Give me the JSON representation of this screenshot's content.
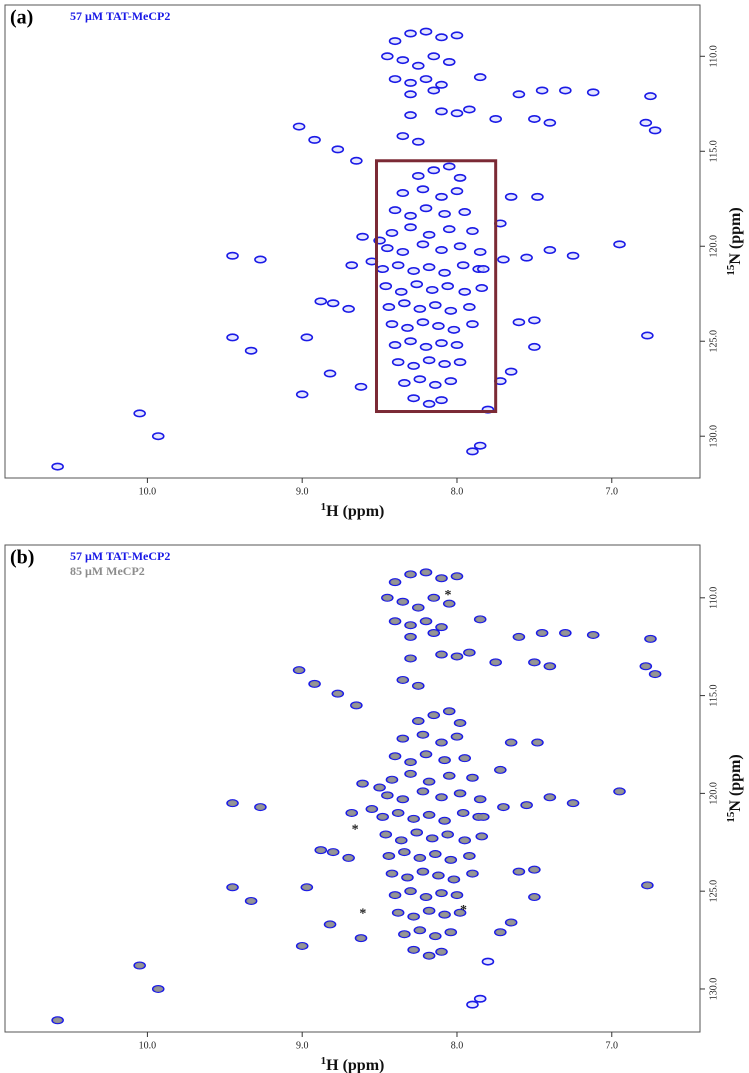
{
  "chart_data": [
    {
      "type": "scatter",
      "panel_label": "(a)",
      "xlabel": {
        "sup": "1",
        "text": "H (ppm)"
      },
      "ylabel": {
        "sup": "15",
        "text": "N (ppm)"
      },
      "xlim": [
        10.92,
        6.43
      ],
      "ylim": [
        107.3,
        132.2
      ],
      "xticks": [
        {
          "value": 10,
          "label": "10.0"
        },
        {
          "value": 9,
          "label": "9.0"
        },
        {
          "value": 8,
          "label": "8.0"
        },
        {
          "value": 7,
          "label": "7.0"
        }
      ],
      "yticks": [
        {
          "value": 110,
          "label": "110.0"
        },
        {
          "value": 115,
          "label": "115.0"
        },
        {
          "value": 120,
          "label": "120.0"
        },
        {
          "value": 125,
          "label": "125.0"
        },
        {
          "value": 130,
          "label": "130.0"
        }
      ],
      "box": {
        "x": [
          8.52,
          7.75
        ],
        "y": [
          115.5,
          128.7
        ],
        "color": "#7b2a35"
      },
      "series": [
        {
          "name": "57 μM TAT-MeCP2",
          "color": "#1a1ae6",
          "x": [
            8.4,
            8.3,
            8.2,
            8.1,
            8.0,
            8.45,
            8.35,
            8.25,
            8.15,
            8.05,
            8.4,
            8.3,
            8.2,
            8.1,
            8.3,
            8.15,
            8.25,
            8.15,
            8.05,
            7.98,
            8.35,
            8.22,
            8.1,
            8.0,
            8.4,
            8.3,
            8.2,
            8.08,
            7.95,
            8.42,
            8.3,
            8.18,
            8.05,
            7.9,
            8.45,
            8.35,
            8.22,
            8.1,
            7.98,
            7.85,
            8.48,
            8.38,
            8.28,
            8.18,
            8.08,
            7.96,
            7.86,
            8.46,
            8.36,
            8.26,
            8.16,
            8.06,
            7.95,
            7.84,
            8.44,
            8.34,
            8.24,
            8.14,
            8.04,
            7.92,
            8.42,
            8.32,
            8.22,
            8.12,
            8.02,
            7.9,
            8.4,
            8.3,
            8.2,
            8.1,
            8.0,
            8.38,
            8.28,
            8.18,
            8.08,
            7.98,
            8.34,
            8.24,
            8.14,
            8.04,
            8.28,
            8.18,
            8.1,
            10.58,
            9.93,
            10.05,
            9.45,
            9.27,
            9.45,
            9.33,
            9.02,
            8.92,
            8.77,
            8.65,
            8.88,
            8.8,
            8.7,
            8.97,
            8.82,
            8.62,
            9.0,
            8.68,
            8.55,
            8.61,
            8.5,
            7.4,
            7.55,
            7.25,
            6.95,
            7.5,
            7.6,
            6.77,
            7.5,
            7.7,
            7.83,
            7.65,
            7.72,
            7.48,
            7.6,
            7.45,
            7.3,
            7.12,
            7.5,
            7.4,
            6.75,
            6.78,
            6.72,
            7.75,
            7.85,
            8.3,
            8.1,
            8.0,
            7.92,
            8.35,
            8.25,
            7.65,
            7.72,
            7.8,
            7.85,
            7.9
          ],
          "y": [
            109.2,
            108.8,
            108.7,
            109.0,
            108.9,
            110.0,
            110.2,
            110.5,
            110.0,
            110.3,
            111.2,
            111.4,
            111.2,
            111.5,
            112.0,
            111.8,
            116.3,
            116.0,
            115.8,
            116.4,
            117.2,
            117.0,
            117.4,
            117.1,
            118.1,
            118.4,
            118.0,
            118.3,
            118.2,
            119.3,
            119.0,
            119.4,
            119.1,
            119.2,
            120.1,
            120.3,
            119.9,
            120.2,
            120.0,
            120.3,
            121.2,
            121.0,
            121.3,
            121.1,
            121.4,
            121.0,
            121.2,
            122.1,
            122.4,
            122.0,
            122.3,
            122.1,
            122.4,
            122.2,
            123.2,
            123.0,
            123.3,
            123.1,
            123.4,
            123.2,
            124.1,
            124.3,
            124.0,
            124.2,
            124.4,
            124.1,
            125.2,
            125.0,
            125.3,
            125.1,
            125.2,
            126.1,
            126.3,
            126.0,
            126.2,
            126.1,
            127.2,
            127.0,
            127.3,
            127.1,
            128.0,
            128.3,
            128.1,
            131.6,
            130.0,
            128.8,
            120.5,
            120.7,
            124.8,
            125.5,
            113.7,
            114.4,
            114.9,
            115.5,
            122.9,
            123.0,
            123.3,
            124.8,
            126.7,
            127.4,
            127.8,
            121.0,
            120.8,
            119.5,
            119.7,
            120.2,
            120.6,
            120.5,
            119.9,
            123.9,
            124.0,
            124.7,
            125.3,
            120.7,
            121.2,
            117.4,
            118.8,
            117.4,
            112.0,
            111.8,
            111.8,
            111.9,
            113.3,
            113.5,
            112.1,
            113.5,
            113.9,
            113.3,
            111.1,
            113.1,
            112.9,
            113.0,
            112.8,
            114.2,
            114.5,
            126.6,
            127.1,
            128.6,
            130.5,
            130.8
          ]
        }
      ]
    },
    {
      "type": "scatter",
      "panel_label": "(b)",
      "xlabel": {
        "sup": "1",
        "text": "H (ppm)"
      },
      "ylabel": {
        "sup": "15",
        "text": "N (ppm)"
      },
      "xlim": [
        10.92,
        6.43
      ],
      "ylim": [
        107.3,
        132.2
      ],
      "xticks": [
        {
          "value": 10,
          "label": "10.0"
        },
        {
          "value": 9,
          "label": "9.0"
        },
        {
          "value": 8,
          "label": "8.0"
        },
        {
          "value": 7,
          "label": "7.0"
        }
      ],
      "yticks": [
        {
          "value": 110,
          "label": "110.0"
        },
        {
          "value": 115,
          "label": "115.0"
        },
        {
          "value": 120,
          "label": "120.0"
        },
        {
          "value": 125,
          "label": "125.0"
        },
        {
          "value": 130,
          "label": "130.0"
        }
      ],
      "annotations": [
        {
          "text": "*",
          "x": 8.0,
          "y": 110.2
        },
        {
          "text": "*",
          "x": 8.6,
          "y": 122.2
        },
        {
          "text": "*",
          "x": 8.55,
          "y": 126.5
        },
        {
          "text": "*",
          "x": 7.9,
          "y": 126.3
        }
      ],
      "series": [
        {
          "name": "57 μM TAT-MeCP2",
          "color": "#1a1ae6",
          "x": [
            8.4,
            8.3,
            8.2,
            8.1,
            8.0,
            8.45,
            8.35,
            8.25,
            8.15,
            8.05,
            8.4,
            8.3,
            8.2,
            8.1,
            8.3,
            8.15,
            8.25,
            8.15,
            8.05,
            7.98,
            8.35,
            8.22,
            8.1,
            8.0,
            8.4,
            8.3,
            8.2,
            8.08,
            7.95,
            8.42,
            8.3,
            8.18,
            8.05,
            7.9,
            8.45,
            8.35,
            8.22,
            8.1,
            7.98,
            7.85,
            8.48,
            8.38,
            8.28,
            8.18,
            8.08,
            7.96,
            7.86,
            8.46,
            8.36,
            8.26,
            8.16,
            8.06,
            7.95,
            7.84,
            8.44,
            8.34,
            8.24,
            8.14,
            8.04,
            7.92,
            8.42,
            8.32,
            8.22,
            8.12,
            8.02,
            7.9,
            8.4,
            8.3,
            8.2,
            8.1,
            8.0,
            8.38,
            8.28,
            8.18,
            8.08,
            7.98,
            8.34,
            8.24,
            8.14,
            8.04,
            8.28,
            8.18,
            8.1,
            10.58,
            9.93,
            10.05,
            9.45,
            9.27,
            9.45,
            9.33,
            9.02,
            8.92,
            8.77,
            8.65,
            8.88,
            8.8,
            8.7,
            8.97,
            8.82,
            8.62,
            9.0,
            8.68,
            8.55,
            8.61,
            8.5,
            7.4,
            7.55,
            7.25,
            6.95,
            7.5,
            7.6,
            6.77,
            7.5,
            7.7,
            7.83,
            7.65,
            7.72,
            7.48,
            7.6,
            7.45,
            7.3,
            7.12,
            7.5,
            7.4,
            6.75,
            6.78,
            6.72,
            7.75,
            7.85,
            8.3,
            8.1,
            8.0,
            7.92,
            8.35,
            8.25,
            7.65,
            7.72,
            7.8,
            7.85,
            7.9
          ],
          "y": [
            109.2,
            108.8,
            108.7,
            109.0,
            108.9,
            110.0,
            110.2,
            110.5,
            110.0,
            110.3,
            111.2,
            111.4,
            111.2,
            111.5,
            112.0,
            111.8,
            116.3,
            116.0,
            115.8,
            116.4,
            117.2,
            117.0,
            117.4,
            117.1,
            118.1,
            118.4,
            118.0,
            118.3,
            118.2,
            119.3,
            119.0,
            119.4,
            119.1,
            119.2,
            120.1,
            120.3,
            119.9,
            120.2,
            120.0,
            120.3,
            121.2,
            121.0,
            121.3,
            121.1,
            121.4,
            121.0,
            121.2,
            122.1,
            122.4,
            122.0,
            122.3,
            122.1,
            122.4,
            122.2,
            123.2,
            123.0,
            123.3,
            123.1,
            123.4,
            123.2,
            124.1,
            124.3,
            124.0,
            124.2,
            124.4,
            124.1,
            125.2,
            125.0,
            125.3,
            125.1,
            125.2,
            126.1,
            126.3,
            126.0,
            126.2,
            126.1,
            127.2,
            127.0,
            127.3,
            127.1,
            128.0,
            128.3,
            128.1,
            131.6,
            130.0,
            128.8,
            120.5,
            120.7,
            124.8,
            125.5,
            113.7,
            114.4,
            114.9,
            115.5,
            122.9,
            123.0,
            123.3,
            124.8,
            126.7,
            127.4,
            127.8,
            121.0,
            120.8,
            119.5,
            119.7,
            120.2,
            120.6,
            120.5,
            119.9,
            123.9,
            124.0,
            124.7,
            125.3,
            120.7,
            121.2,
            117.4,
            118.8,
            117.4,
            112.0,
            111.8,
            111.8,
            111.9,
            113.3,
            113.5,
            112.1,
            113.5,
            113.9,
            113.3,
            111.1,
            113.1,
            112.9,
            113.0,
            112.8,
            114.2,
            114.5,
            126.6,
            127.1,
            128.6,
            130.5,
            130.8
          ]
        },
        {
          "name": "85 μM MeCP2",
          "color": "#8c8c8c",
          "x": [
            8.4,
            8.3,
            8.2,
            8.1,
            8.0,
            8.45,
            8.35,
            8.25,
            8.15,
            8.05,
            8.4,
            8.3,
            8.2,
            8.1,
            8.3,
            8.15,
            8.25,
            8.15,
            8.05,
            7.98,
            8.35,
            8.22,
            8.1,
            8.0,
            8.4,
            8.3,
            8.2,
            8.08,
            7.95,
            8.42,
            8.3,
            8.18,
            8.05,
            7.9,
            8.45,
            8.35,
            8.22,
            8.1,
            7.98,
            7.85,
            8.48,
            8.38,
            8.28,
            8.18,
            8.08,
            7.96,
            7.86,
            8.46,
            8.36,
            8.26,
            8.16,
            8.06,
            7.95,
            7.84,
            8.44,
            8.34,
            8.24,
            8.14,
            8.04,
            7.92,
            8.42,
            8.32,
            8.22,
            8.12,
            8.02,
            7.9,
            8.4,
            8.3,
            8.2,
            8.1,
            8.0,
            8.38,
            8.28,
            8.18,
            8.08,
            7.98,
            8.34,
            8.24,
            8.14,
            8.04,
            8.28,
            8.18,
            8.1,
            10.58,
            9.93,
            10.05,
            9.45,
            9.27,
            9.45,
            9.33,
            9.02,
            8.92,
            8.77,
            8.65,
            8.88,
            8.8,
            8.7,
            8.97,
            8.82,
            8.62,
            9.0,
            8.68,
            8.55,
            8.61,
            8.5,
            7.4,
            7.55,
            7.25,
            6.95,
            7.5,
            7.6,
            6.77,
            7.5,
            7.7,
            7.83,
            7.65,
            7.72,
            7.48,
            7.6,
            7.45,
            7.3,
            7.12,
            7.5,
            7.4,
            6.75,
            6.78,
            6.72,
            7.75,
            7.85,
            8.3,
            8.1,
            8.0,
            7.92,
            8.35,
            8.25,
            7.65,
            7.72
          ],
          "y": [
            109.2,
            108.8,
            108.7,
            109.0,
            108.9,
            110.0,
            110.2,
            110.5,
            110.0,
            110.3,
            111.2,
            111.4,
            111.2,
            111.5,
            112.0,
            111.8,
            116.3,
            116.0,
            115.8,
            116.4,
            117.2,
            117.0,
            117.4,
            117.1,
            118.1,
            118.4,
            118.0,
            118.3,
            118.2,
            119.3,
            119.0,
            119.4,
            119.1,
            119.2,
            120.1,
            120.3,
            119.9,
            120.2,
            120.0,
            120.3,
            121.2,
            121.0,
            121.3,
            121.1,
            121.4,
            121.0,
            121.2,
            122.1,
            122.4,
            122.0,
            122.3,
            122.1,
            122.4,
            122.2,
            123.2,
            123.0,
            123.3,
            123.1,
            123.4,
            123.2,
            124.1,
            124.3,
            124.0,
            124.2,
            124.4,
            124.1,
            125.2,
            125.0,
            125.3,
            125.1,
            125.2,
            126.1,
            126.3,
            126.0,
            126.2,
            126.1,
            127.2,
            127.0,
            127.3,
            127.1,
            128.0,
            128.3,
            128.1,
            131.6,
            130.0,
            128.8,
            120.5,
            120.7,
            124.8,
            125.5,
            113.7,
            114.4,
            114.9,
            115.5,
            122.9,
            123.0,
            123.3,
            124.8,
            126.7,
            127.4,
            127.8,
            121.0,
            120.8,
            119.5,
            119.7,
            120.2,
            120.6,
            120.5,
            119.9,
            123.9,
            124.0,
            124.7,
            125.3,
            120.7,
            121.2,
            117.4,
            118.8,
            117.4,
            112.0,
            111.8,
            111.8,
            111.9,
            113.3,
            113.5,
            112.1,
            113.5,
            113.9,
            113.3,
            111.1,
            113.1,
            112.9,
            113.0,
            112.8,
            114.2,
            114.5,
            126.6,
            127.1
          ]
        }
      ]
    }
  ]
}
